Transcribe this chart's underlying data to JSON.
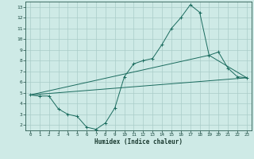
{
  "xlabel": "Humidex (Indice chaleur)",
  "bg_color": "#ceeae6",
  "grid_color": "#aaccc8",
  "line_color": "#1a6b5e",
  "xlim": [
    -0.5,
    23.5
  ],
  "ylim": [
    1.5,
    13.5
  ],
  "xticks": [
    0,
    1,
    2,
    3,
    4,
    5,
    6,
    7,
    8,
    9,
    10,
    11,
    12,
    13,
    14,
    15,
    16,
    17,
    18,
    19,
    20,
    21,
    22,
    23
  ],
  "yticks": [
    2,
    3,
    4,
    5,
    6,
    7,
    8,
    9,
    10,
    11,
    12,
    13
  ],
  "line1_x": [
    0,
    1,
    2,
    3,
    4,
    5,
    6,
    7,
    8,
    9,
    10,
    11,
    12,
    13,
    14,
    15,
    16,
    17,
    18,
    19,
    20,
    21,
    22,
    23
  ],
  "line1_y": [
    4.8,
    4.7,
    4.7,
    3.5,
    3.0,
    2.8,
    1.8,
    1.6,
    2.2,
    3.6,
    6.5,
    7.7,
    8.0,
    8.2,
    9.5,
    11.0,
    12.0,
    13.2,
    12.5,
    8.5,
    8.8,
    7.3,
    6.5,
    6.4
  ],
  "line2_x": [
    0,
    23
  ],
  "line2_y": [
    4.8,
    6.4
  ],
  "line3_x": [
    0,
    19,
    23
  ],
  "line3_y": [
    4.8,
    8.5,
    6.4
  ]
}
